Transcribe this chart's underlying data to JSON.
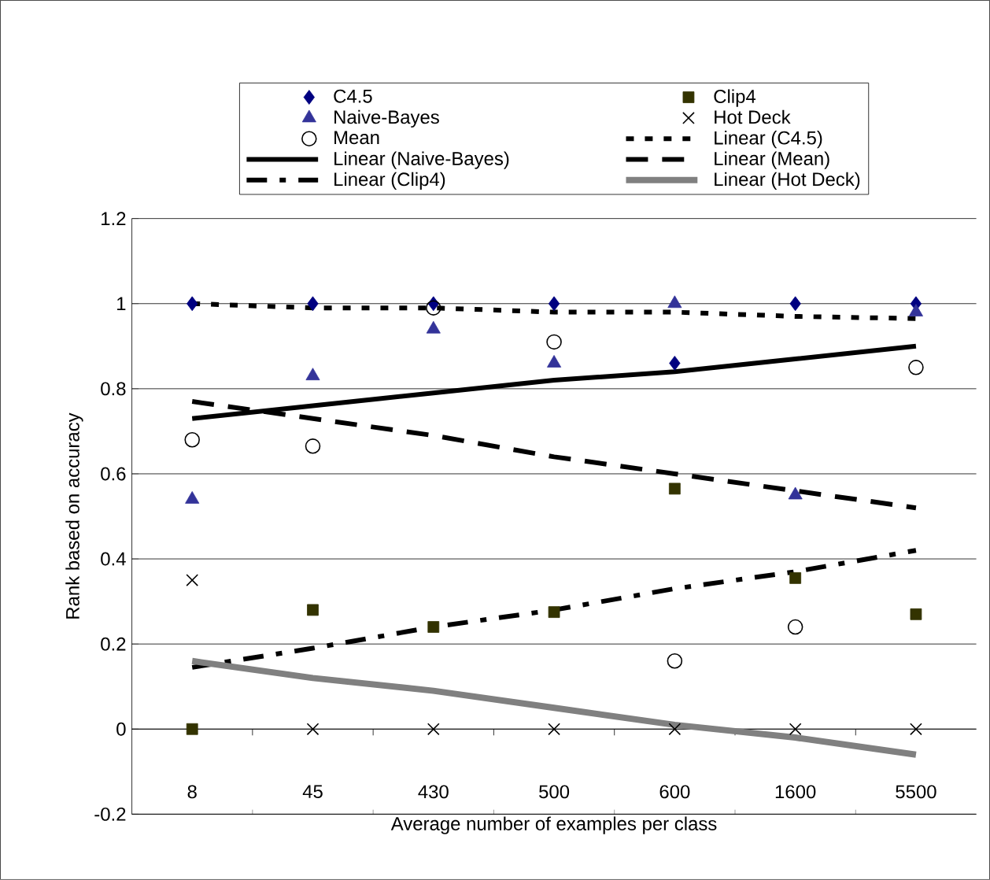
{
  "chart_data": {
    "type": "scatter",
    "xlabel": "Average number of examples per class",
    "ylabel": "Rank based on accuracy",
    "categories": [
      "8",
      "45",
      "430",
      "500",
      "600",
      "1600",
      "5500"
    ],
    "ylim": [
      -0.2,
      1.2
    ],
    "yticks": [
      -0.2,
      0,
      0.2,
      0.4,
      0.6,
      0.8,
      1,
      1.2
    ],
    "grid": "y",
    "legend": "top",
    "series": [
      {
        "name": "C4.5",
        "color": "#000080",
        "marker": "diamond",
        "values": [
          1,
          1,
          1,
          1,
          0.86,
          1,
          1
        ]
      },
      {
        "name": "Clip4",
        "color": "#333300",
        "marker": "square",
        "values": [
          0,
          0.28,
          0.24,
          0.275,
          0.565,
          0.355,
          0.27
        ]
      },
      {
        "name": "Naive-Bayes",
        "color": "#333399",
        "marker": "triangle",
        "values": [
          0.54,
          0.83,
          0.94,
          0.86,
          1,
          0.55,
          0.98
        ]
      },
      {
        "name": "Hot Deck",
        "color": "#000000",
        "marker": "cross",
        "values": [
          0.35,
          0,
          0,
          0,
          0,
          0,
          0
        ]
      },
      {
        "name": "Mean",
        "color": "#000000",
        "marker": "circle",
        "values": [
          0.68,
          0.665,
          0.99,
          0.91,
          0.16,
          0.24,
          0.85
        ]
      },
      {
        "name": "Linear (C4.5)",
        "type": "line",
        "color": "#000000",
        "line_style": "dotted",
        "values": [
          1,
          0.99,
          0.99,
          0.98,
          0.98,
          0.97,
          0.965
        ]
      },
      {
        "name": "Linear (Naive-Bayes)",
        "type": "line",
        "color": "#000000",
        "line_style": "solid",
        "values": [
          0.73,
          0.76,
          0.79,
          0.82,
          0.84,
          0.87,
          0.9
        ]
      },
      {
        "name": "Linear (Mean)",
        "type": "line",
        "color": "#000000",
        "line_style": "dashed",
        "values": [
          0.77,
          0.73,
          0.69,
          0.64,
          0.6,
          0.56,
          0.52
        ]
      },
      {
        "name": "Linear (Clip4)",
        "type": "line",
        "color": "#000000",
        "line_style": "dashdot",
        "values": [
          0.145,
          0.19,
          0.24,
          0.28,
          0.33,
          0.37,
          0.42
        ]
      },
      {
        "name": "Linear (Hot Deck)",
        "type": "line",
        "color": "#808080",
        "line_style": "solid",
        "values": [
          0.16,
          0.12,
          0.09,
          0.05,
          0.01,
          -0.02,
          -0.06
        ]
      }
    ]
  }
}
